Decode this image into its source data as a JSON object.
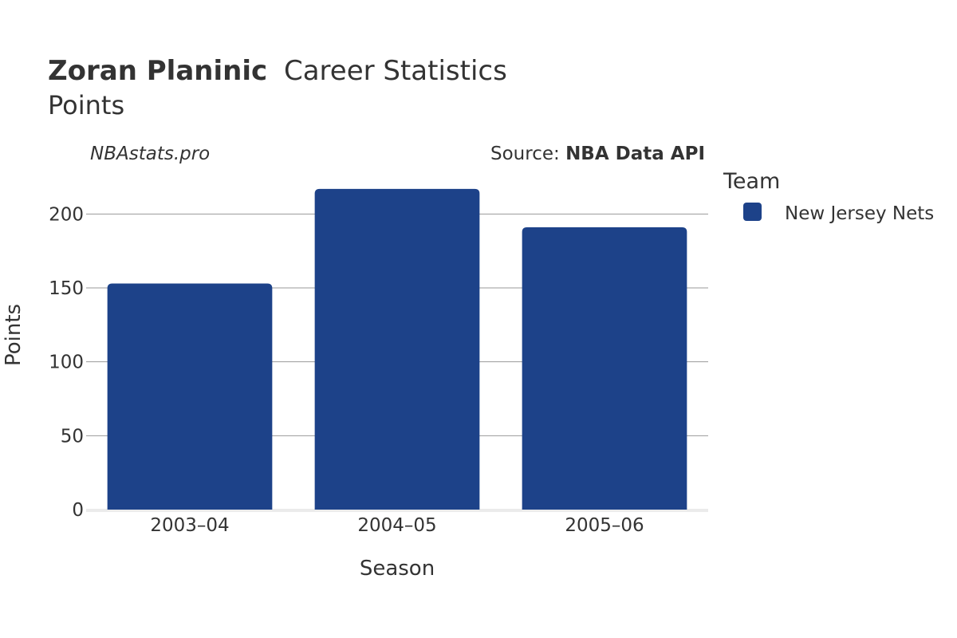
{
  "header": {
    "title_bold": "Zoran Planinic",
    "title_rest": "Career Statistics",
    "subtitle": "Points"
  },
  "watermark": "NBAstats.pro",
  "source": {
    "prefix": "Source: ",
    "name": "NBA Data API"
  },
  "legend": {
    "title": "Team",
    "items": [
      {
        "label": "New Jersey Nets",
        "color": "#1d4289"
      }
    ]
  },
  "chart_data": {
    "type": "bar",
    "title": "Zoran Planinic Career Statistics",
    "subtitle": "Points",
    "xlabel": "Season",
    "ylabel": "Points",
    "categories": [
      "2003–04",
      "2004–05",
      "2005–06"
    ],
    "series": [
      {
        "name": "New Jersey Nets",
        "color": "#1d4289",
        "values": [
          153,
          217,
          191
        ]
      }
    ],
    "ylim": [
      0,
      225
    ],
    "yticks": [
      0,
      50,
      100,
      150,
      200
    ],
    "grid": true,
    "legend_position": "right"
  }
}
